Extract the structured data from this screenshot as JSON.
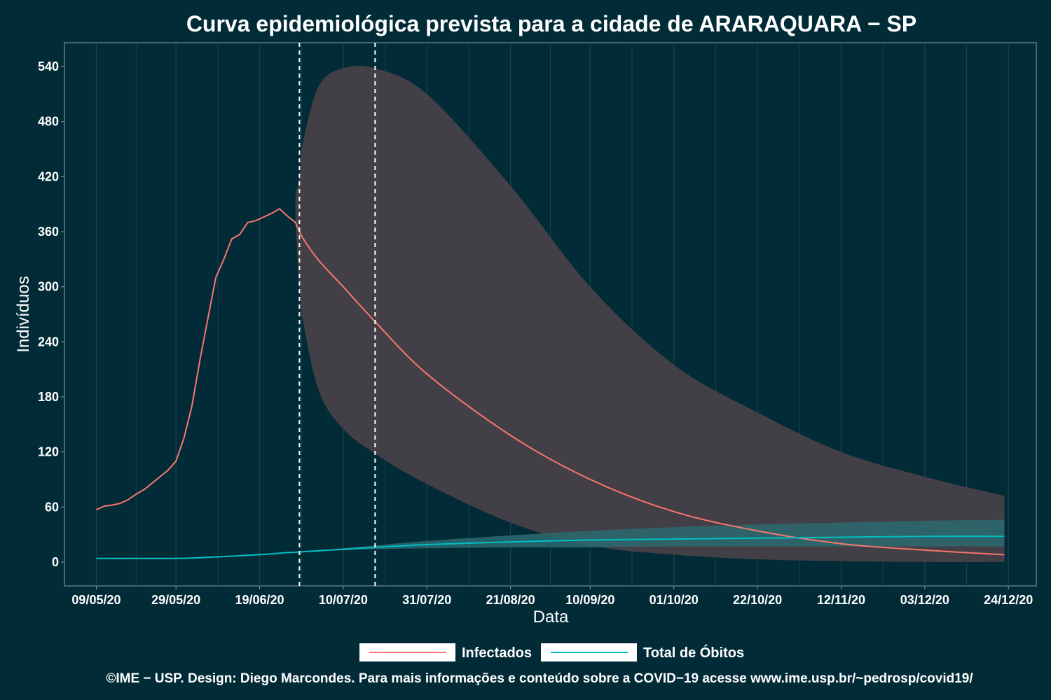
{
  "chart_data": {
    "type": "line",
    "title": "Curva epidemiológica prevista para a cidade de ARARAQUARA − SP",
    "xlabel": "Data",
    "ylabel": "Indivíduos",
    "x_range": [
      "2020-05-01",
      "2020-12-31"
    ],
    "ylim": [
      -26,
      566
    ],
    "y_ticks": [
      0,
      60,
      120,
      180,
      240,
      300,
      360,
      420,
      480,
      540
    ],
    "x_ticks": [
      {
        "date": "2020-05-09",
        "label": "09/05/20"
      },
      {
        "date": "2020-05-29",
        "label": "29/05/20"
      },
      {
        "date": "2020-06-19",
        "label": "19/06/20"
      },
      {
        "date": "2020-07-10",
        "label": "10/07/20"
      },
      {
        "date": "2020-07-31",
        "label": "31/07/20"
      },
      {
        "date": "2020-08-21",
        "label": "21/08/20"
      },
      {
        "date": "2020-09-10",
        "label": "10/09/20"
      },
      {
        "date": "2020-10-01",
        "label": "01/10/20"
      },
      {
        "date": "2020-10-22",
        "label": "22/10/20"
      },
      {
        "date": "2020-11-12",
        "label": "12/11/20"
      },
      {
        "date": "2020-12-03",
        "label": "03/12/20"
      },
      {
        "date": "2020-12-24",
        "label": "24/12/20"
      }
    ],
    "vlines": [
      "2020-06-29",
      "2020-07-18"
    ],
    "colors": {
      "background": "#022b38",
      "infectados": "#f8766d",
      "obitos": "#00bfc4",
      "infectados_band": "#433f46",
      "obitos_band": "#2a6a70",
      "grid": "#1b404c"
    },
    "series": [
      {
        "name": "Infectados",
        "color": "#f8766d",
        "x": [
          "2020-05-09",
          "2020-05-11",
          "2020-05-13",
          "2020-05-15",
          "2020-05-17",
          "2020-05-19",
          "2020-05-21",
          "2020-05-23",
          "2020-05-25",
          "2020-05-27",
          "2020-05-29",
          "2020-05-31",
          "2020-06-02",
          "2020-06-04",
          "2020-06-06",
          "2020-06-08",
          "2020-06-10",
          "2020-06-12",
          "2020-06-14",
          "2020-06-16",
          "2020-06-18",
          "2020-06-20",
          "2020-06-22",
          "2020-06-24",
          "2020-06-26",
          "2020-06-28",
          "2020-06-30",
          "2020-07-04",
          "2020-07-10",
          "2020-07-18",
          "2020-07-31",
          "2020-08-21",
          "2020-09-10",
          "2020-10-01",
          "2020-10-22",
          "2020-11-12",
          "2020-12-03",
          "2020-12-23"
        ],
        "values": [
          57,
          61,
          62,
          64,
          68,
          74,
          79,
          86,
          93,
          100,
          110,
          135,
          170,
          220,
          265,
          310,
          330,
          352,
          357,
          370,
          372,
          376,
          380,
          385,
          377,
          370,
          352,
          328,
          300,
          262,
          205,
          138,
          90,
          55,
          34,
          20,
          13,
          8
        ]
      },
      {
        "name": "Total de Óbitos",
        "color": "#00bfc4",
        "x": [
          "2020-05-09",
          "2020-05-29",
          "2020-06-05",
          "2020-06-10",
          "2020-06-19",
          "2020-06-25",
          "2020-06-29",
          "2020-07-10",
          "2020-07-18",
          "2020-07-31",
          "2020-08-21",
          "2020-09-10",
          "2020-10-01",
          "2020-10-22",
          "2020-11-12",
          "2020-12-03",
          "2020-12-23"
        ],
        "values": [
          4,
          4,
          5,
          6,
          8,
          10,
          11,
          14,
          16,
          19,
          22,
          24,
          25,
          26,
          27,
          28,
          28
        ]
      }
    ],
    "intervals": [
      {
        "name": "Infectados",
        "x": [
          "2020-06-28",
          "2020-06-29",
          "2020-06-30",
          "2020-07-04",
          "2020-07-10",
          "2020-07-18",
          "2020-07-31",
          "2020-08-21",
          "2020-09-10",
          "2020-10-01",
          "2020-10-22",
          "2020-11-12",
          "2020-12-03",
          "2020-12-23"
        ],
        "lower": [
          370,
          300,
          260,
          185,
          145,
          118,
          85,
          43,
          18,
          8,
          3,
          1,
          0,
          0
        ],
        "upper": [
          400,
          420,
          460,
          520,
          538,
          538,
          510,
          410,
          300,
          215,
          163,
          120,
          93,
          72
        ]
      },
      {
        "name": "Total de Óbitos",
        "x": [
          "2020-06-29",
          "2020-07-10",
          "2020-07-18",
          "2020-07-31",
          "2020-08-21",
          "2020-09-10",
          "2020-10-01",
          "2020-10-22",
          "2020-11-12",
          "2020-12-03",
          "2020-12-23"
        ],
        "lower": [
          11,
          13,
          14,
          15,
          16,
          16,
          17,
          17,
          17,
          17,
          17
        ],
        "upper": [
          11,
          15,
          18,
          23,
          29,
          34,
          38,
          41,
          43,
          45,
          46
        ]
      }
    ]
  },
  "legend": {
    "items": [
      {
        "label": "Infectados",
        "color": "#f8766d"
      },
      {
        "label": "Total de Óbitos",
        "color": "#00bfc4"
      }
    ]
  },
  "caption": "©IME − USP. Design: Diego Marcondes. Para mais informações e conteúdo sobre a COVID−19 acesse www.ime.usp.br/~pedrosp/covid19/"
}
